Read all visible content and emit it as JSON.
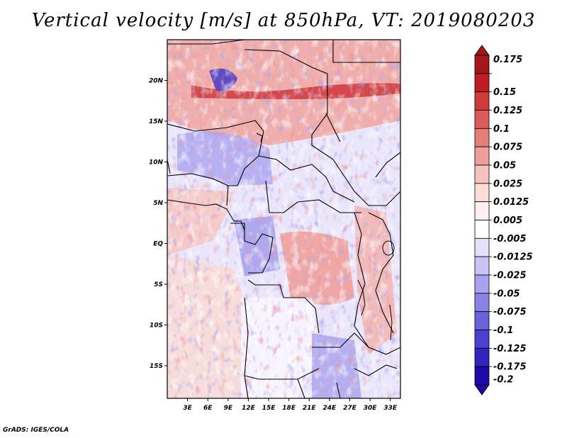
{
  "title": "Vertical velocity [m/s] at 850hPa, VT: 2019080203",
  "credit": "GrADS: IGES/COLA",
  "map": {
    "lon_range": [
      0,
      34.5
    ],
    "lat_range": [
      -19,
      25
    ],
    "lat_ticks": [
      {
        "value": 20,
        "label": "20N"
      },
      {
        "value": 15,
        "label": "15N"
      },
      {
        "value": 10,
        "label": "10N"
      },
      {
        "value": 5,
        "label": "5N"
      },
      {
        "value": 0,
        "label": "EQ"
      },
      {
        "value": -5,
        "label": "5S"
      },
      {
        "value": -10,
        "label": "10S"
      },
      {
        "value": -15,
        "label": "15S"
      }
    ],
    "lon_ticks": [
      {
        "value": 3,
        "label": "3E"
      },
      {
        "value": 6,
        "label": "6E"
      },
      {
        "value": 9,
        "label": "9E"
      },
      {
        "value": 12,
        "label": "12E"
      },
      {
        "value": 15,
        "label": "15E"
      },
      {
        "value": 18,
        "label": "18E"
      },
      {
        "value": 21,
        "label": "21E"
      },
      {
        "value": 24,
        "label": "24E"
      },
      {
        "value": 27,
        "label": "27E"
      },
      {
        "value": 30,
        "label": "30E"
      },
      {
        "value": 33,
        "label": "33E"
      }
    ]
  },
  "colorbar": {
    "levels": [
      {
        "label": "0.175",
        "color": "#a5161a"
      },
      {
        "label": "0.15",
        "color": "#be1c22"
      },
      {
        "label": "0.125",
        "color": "#cf3b3b"
      },
      {
        "label": "0.1",
        "color": "#dc5a58"
      },
      {
        "label": "0.075",
        "color": "#e57e78"
      },
      {
        "label": "0.05",
        "color": "#ee9e98"
      },
      {
        "label": "0.025",
        "color": "#f5c2bd"
      },
      {
        "label": "0.0125",
        "color": "#fadcd8"
      },
      {
        "label": "0.005",
        "color": "#fdf0ee"
      },
      {
        "label": "-0.005",
        "color": "#ffffff"
      },
      {
        "label": "-0.0125",
        "color": "#e4e2fb"
      },
      {
        "label": "-0.025",
        "color": "#c8c4f6"
      },
      {
        "label": "-0.05",
        "color": "#a9a3ef"
      },
      {
        "label": "-0.075",
        "color": "#8a82e6"
      },
      {
        "label": "-0.1",
        "color": "#6a61dc"
      },
      {
        "label": "-0.125",
        "color": "#4b40cf"
      },
      {
        "label": "-0.175",
        "color": "#3224c0"
      },
      {
        "label": "-0.2",
        "color": "#1e0aa8"
      }
    ],
    "top_arrow_color": "#a5161a",
    "bottom_arrow_color": "#1e0aa8"
  },
  "colors": {
    "red": "#d94a4a",
    "blue": "#6f65e0",
    "light_red": "#f3b6b0",
    "light_blue": "#c4c0f4"
  }
}
